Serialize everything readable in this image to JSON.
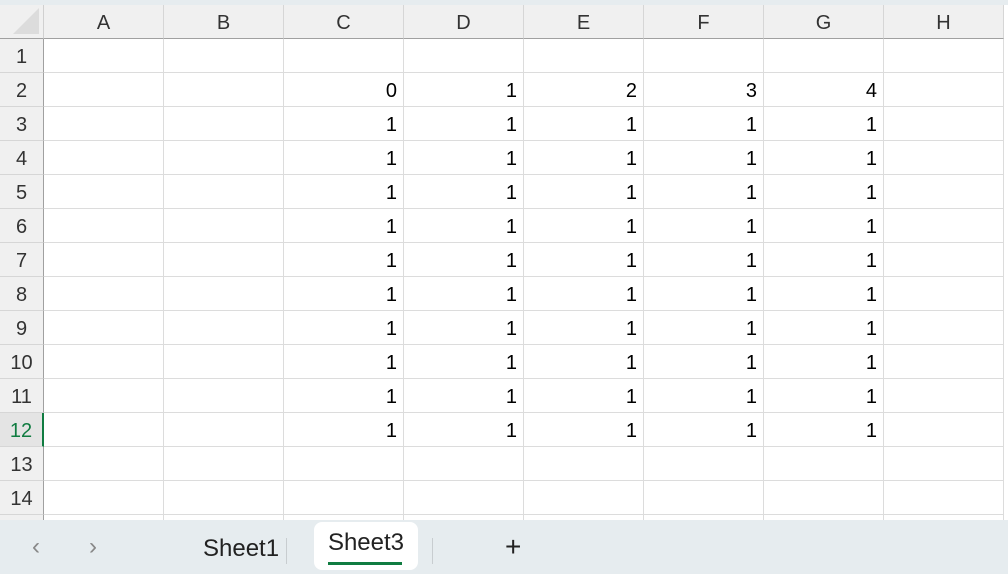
{
  "columns": [
    "A",
    "B",
    "C",
    "D",
    "E",
    "F",
    "G",
    "H"
  ],
  "row_numbers": [
    "1",
    "2",
    "3",
    "4",
    "5",
    "6",
    "7",
    "8",
    "9",
    "10",
    "11",
    "12",
    "13",
    "14"
  ],
  "selected_row": "12",
  "accent_color": "#107c41",
  "cells": {
    "2": {
      "C": "0",
      "D": "1",
      "E": "2",
      "F": "3",
      "G": "4"
    },
    "3": {
      "C": "1",
      "D": "1",
      "E": "1",
      "F": "1",
      "G": "1"
    },
    "4": {
      "C": "1",
      "D": "1",
      "E": "1",
      "F": "1",
      "G": "1"
    },
    "5": {
      "C": "1",
      "D": "1",
      "E": "1",
      "F": "1",
      "G": "1"
    },
    "6": {
      "C": "1",
      "D": "1",
      "E": "1",
      "F": "1",
      "G": "1"
    },
    "7": {
      "C": "1",
      "D": "1",
      "E": "1",
      "F": "1",
      "G": "1"
    },
    "8": {
      "C": "1",
      "D": "1",
      "E": "1",
      "F": "1",
      "G": "1"
    },
    "9": {
      "C": "1",
      "D": "1",
      "E": "1",
      "F": "1",
      "G": "1"
    },
    "10": {
      "C": "1",
      "D": "1",
      "E": "1",
      "F": "1",
      "G": "1"
    },
    "11": {
      "C": "1",
      "D": "1",
      "E": "1",
      "F": "1",
      "G": "1"
    },
    "12": {
      "C": "1",
      "D": "1",
      "E": "1",
      "F": "1",
      "G": "1"
    }
  },
  "tabs": {
    "prev": "‹",
    "next": "›",
    "sheet1": "Sheet1",
    "sheet3": "Sheet3",
    "add": "+"
  }
}
